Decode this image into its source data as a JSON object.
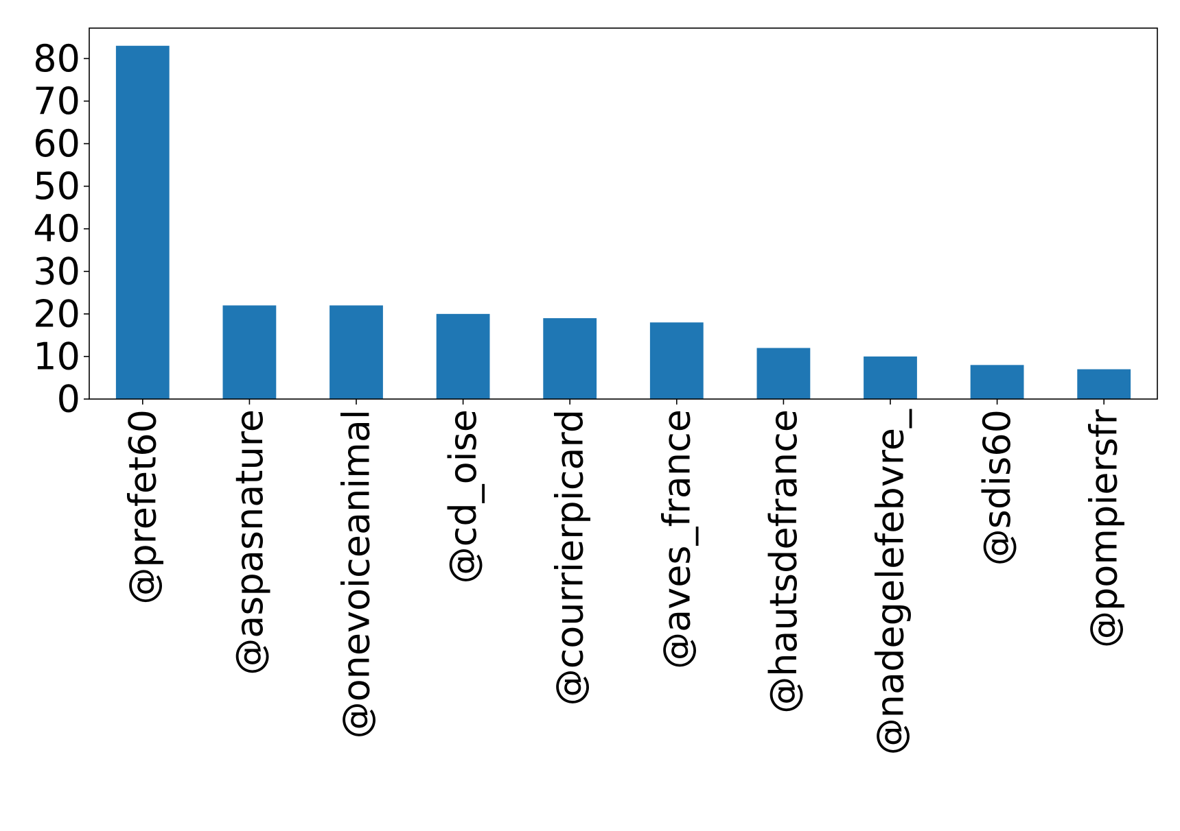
{
  "chart_data": {
    "type": "bar",
    "title": "",
    "xlabel": "",
    "ylabel": "",
    "categories": [
      "@prefet60",
      "@aspasnature",
      "@onevoiceanimal",
      "@cd_oise",
      "@courrierpicard",
      "@aves_france",
      "@hautsdefrance",
      "@nadegelefebvre_",
      "@sdis60",
      "@pompiersfr"
    ],
    "values": [
      83,
      22,
      22,
      20,
      19,
      18,
      12,
      10,
      8,
      7
    ],
    "ylim": [
      0,
      87.15
    ],
    "yticks": [
      0,
      10,
      20,
      30,
      40,
      50,
      60,
      70,
      80
    ],
    "grid": false,
    "legend": "none",
    "bar_color": "#1f77b4"
  }
}
